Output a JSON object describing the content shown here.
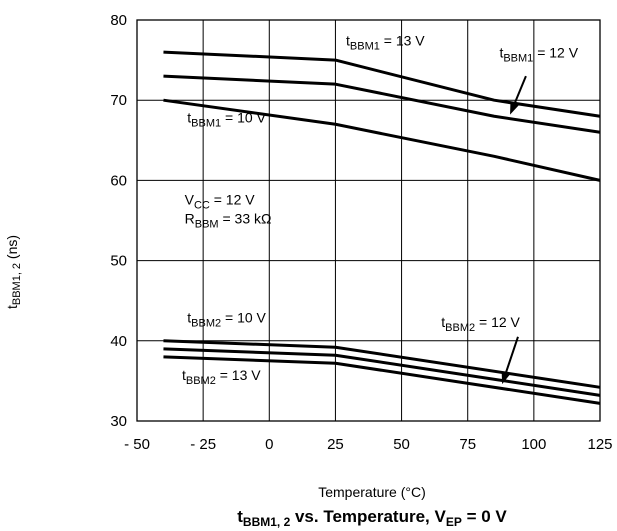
{
  "chart_data": {
    "type": "line",
    "title": {
      "prefix": "t",
      "sub": "BBM1, 2",
      "mid": " vs. Temperature, V",
      "sub2": "EP",
      "suffix": " = 0 V"
    },
    "xlabel": "Temperature (°C)",
    "ylabel": {
      "prefix": "t",
      "sub": "BBM1, 2",
      "suffix": " (ns)"
    },
    "xlim": [
      -50,
      125
    ],
    "ylim": [
      30,
      80
    ],
    "xticks": [
      -50,
      -25,
      0,
      25,
      50,
      75,
      100,
      125
    ],
    "xtick_labels": [
      "- 50",
      "- 25",
      "0",
      "25",
      "50",
      "75",
      "100",
      "125"
    ],
    "yticks": [
      30,
      40,
      50,
      60,
      70,
      80
    ],
    "ytick_labels": [
      "30",
      "40",
      "50",
      "60",
      "70",
      "80"
    ],
    "grid": true,
    "series": [
      {
        "x": [
          -40,
          25,
          85,
          125
        ],
        "y": [
          76,
          75,
          70,
          68
        ]
      },
      {
        "x": [
          -40,
          25,
          85,
          125
        ],
        "y": [
          73,
          72,
          68,
          66
        ]
      },
      {
        "x": [
          -40,
          25,
          85,
          125
        ],
        "y": [
          70,
          67,
          63,
          60
        ]
      },
      {
        "x": [
          -40,
          25,
          125
        ],
        "y": [
          40,
          39.2,
          34.2
        ]
      },
      {
        "x": [
          -40,
          25,
          125
        ],
        "y": [
          39,
          38.2,
          33.2
        ]
      },
      {
        "x": [
          -40,
          25,
          125
        ],
        "y": [
          38,
          37.2,
          32.2
        ]
      }
    ],
    "annotations": [
      {
        "prefix": "t",
        "sub": "BBM1",
        "suffix": " = 13 V",
        "x": 29,
        "y": 76.8
      },
      {
        "prefix": "t",
        "sub": "BBM1",
        "suffix": " = 12 V",
        "x": 87,
        "y": 75.3
      },
      {
        "prefix": "t",
        "sub": "BBM1",
        "suffix": " = 10 V",
        "x": -31,
        "y": 67.2
      },
      {
        "prefix": "t",
        "sub": "BBM2",
        "suffix": " = 10 V",
        "x": -31,
        "y": 42.3
      },
      {
        "prefix": "t",
        "sub": "BBM2",
        "suffix": " = 12 V",
        "x": 65,
        "y": 41.7
      },
      {
        "prefix": "t",
        "sub": "BBM2",
        "suffix": " = 13 V",
        "x": -33,
        "y": 35.1
      }
    ],
    "conditions": [
      {
        "prefix": "V",
        "sub": "CC",
        "suffix": " = 12 V",
        "x": -32,
        "y": 57.0
      },
      {
        "prefix": "R",
        "sub": "BBM",
        "suffix": " = 33 kΩ",
        "x": -32,
        "y": 54.6
      }
    ],
    "arrows": [
      {
        "from": [
          97,
          73
        ],
        "to": [
          91,
          68.2
        ]
      },
      {
        "from": [
          94,
          40.5
        ],
        "to": [
          88,
          34.6
        ]
      }
    ]
  }
}
